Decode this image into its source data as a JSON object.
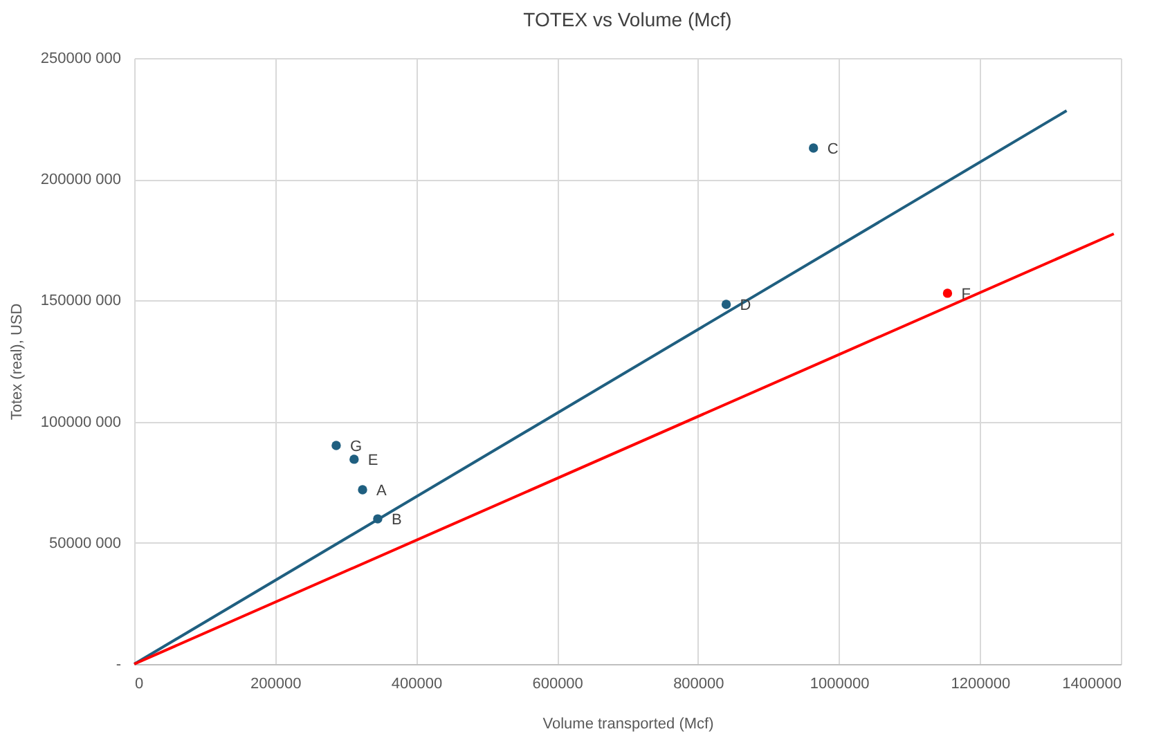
{
  "chart_data": {
    "type": "scatter",
    "title": "TOTEX vs Volume (Mcf)",
    "xlabel": "Volume transported (Mcf)",
    "ylabel": "Totex (real), USD",
    "xlim": [
      0,
      1400000
    ],
    "xticks": [
      0,
      200000,
      400000,
      600000,
      800000,
      1000000,
      1200000,
      1400000
    ],
    "ylim": [
      0,
      250000000
    ],
    "yticks": [
      {
        "value": 0,
        "label": "-"
      },
      {
        "value": 50000000,
        "label": "50000 000"
      },
      {
        "value": 100000000,
        "label": "100000 000"
      },
      {
        "value": 150000000,
        "label": "150000 000"
      },
      {
        "value": 200000000,
        "label": "200000 000"
      },
      {
        "value": 250000000,
        "label": "250000 000"
      }
    ],
    "grid": true,
    "series": [
      {
        "type": "scatter",
        "marker": "circle",
        "color": "#1f5f80",
        "x": [
          324000,
          345500,
          963800,
          840000,
          312000,
          286600
        ],
        "values": [
          71900000,
          59900000,
          212900000,
          148400000,
          84500000,
          90200000
        ]
      },
      {
        "type": "scatter",
        "marker": "circle",
        "color": "#ff0000",
        "x": [
          1154000
        ],
        "values": [
          153000000
        ]
      },
      {
        "type": "line",
        "color": "#1f5f80",
        "x": [
          0,
          1323000
        ],
        "values": [
          0,
          228300000
        ]
      },
      {
        "type": "line",
        "color": "#ff0000",
        "x": [
          0,
          1390000
        ],
        "values": [
          0,
          177500000
        ]
      }
    ],
    "annotations": [
      {
        "text": "A",
        "x": 324000,
        "y": 71900000
      },
      {
        "text": "B",
        "x": 345500,
        "y": 59900000
      },
      {
        "text": "C",
        "x": 963800,
        "y": 212900000
      },
      {
        "text": "D",
        "x": 840000,
        "y": 148400000
      },
      {
        "text": "E",
        "x": 312000,
        "y": 84500000
      },
      {
        "text": "F",
        "x": 1154000,
        "y": 153000000
      },
      {
        "text": "G",
        "x": 286600,
        "y": 90200000
      }
    ]
  }
}
